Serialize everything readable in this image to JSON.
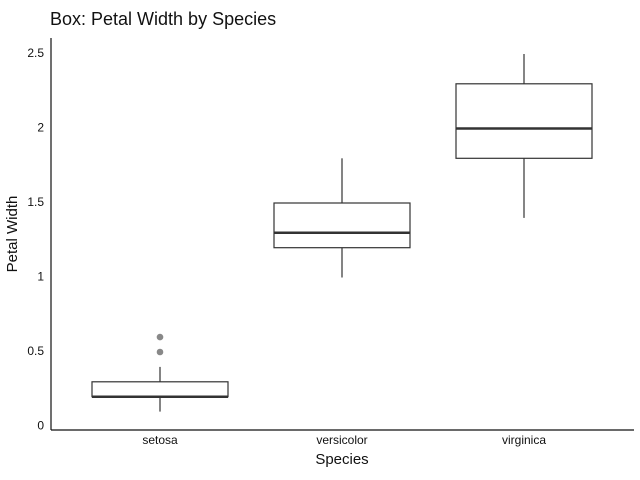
{
  "chart_data": {
    "type": "box",
    "title": "Box: Petal Width by Species",
    "xlabel": "Species",
    "ylabel": "Petal Width",
    "ylim": [
      -0.02,
      2.62
    ],
    "yticks": [
      0,
      0.5,
      1,
      1.5,
      2,
      2.5
    ],
    "ytick_labels": [
      "0",
      "0.5",
      "1",
      "1.5",
      "2",
      "2.5"
    ],
    "grid": false,
    "categories": [
      "setosa",
      "versicolor",
      "virginica"
    ],
    "boxes": [
      {
        "category": "setosa",
        "whisker_low": 0.1,
        "q1": 0.2,
        "median": 0.2,
        "q3": 0.3,
        "whisker_high": 0.4,
        "outliers": [
          0.5,
          0.6
        ]
      },
      {
        "category": "versicolor",
        "whisker_low": 1.0,
        "q1": 1.2,
        "median": 1.3,
        "q3": 1.5,
        "whisker_high": 1.8,
        "outliers": []
      },
      {
        "category": "virginica",
        "whisker_low": 1.4,
        "q1": 1.8,
        "median": 2.0,
        "q3": 2.3,
        "whisker_high": 2.5,
        "outliers": []
      }
    ],
    "colors": {
      "box_fill": "#ffffff",
      "box_edge": "#333333",
      "median": "#333333",
      "outlier": "#888888",
      "axis": "#111111"
    }
  }
}
